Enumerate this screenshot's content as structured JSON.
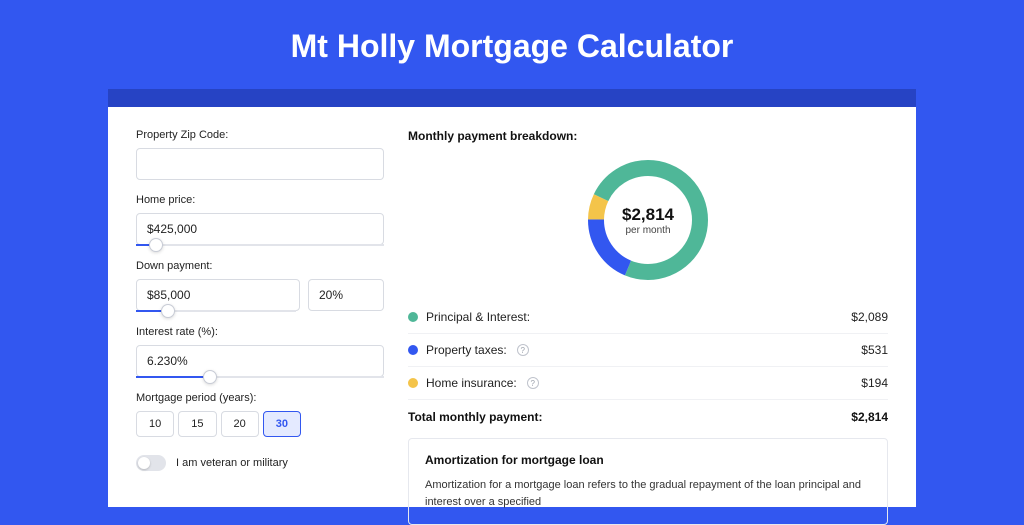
{
  "page": {
    "title": "Mt Holly Mortgage Calculator",
    "colors": {
      "page_bg": "#3257f0",
      "strip_bg": "#2643c4",
      "card_bg": "#ffffff",
      "accent": "#3257f0"
    }
  },
  "form": {
    "zip": {
      "label": "Property Zip Code:",
      "value": ""
    },
    "home_price": {
      "label": "Home price:",
      "value": "$425,000",
      "slider_pct": 8
    },
    "down_payment": {
      "label": "Down payment:",
      "amount": "$85,000",
      "percent": "20%",
      "slider_pct": 20
    },
    "interest_rate": {
      "label": "Interest rate (%):",
      "value": "6.230%",
      "slider_pct": 30
    },
    "period": {
      "label": "Mortgage period (years):",
      "options": [
        "10",
        "15",
        "20",
        "30"
      ],
      "selected": "30"
    },
    "veteran": {
      "label": "I am veteran or military",
      "checked": false
    }
  },
  "breakdown": {
    "title": "Monthly payment breakdown:",
    "center_amount": "$2,814",
    "center_sub": "per month",
    "donut": {
      "segments": [
        {
          "key": "principal_interest",
          "value": 2089,
          "color": "#4fb798"
        },
        {
          "key": "property_taxes",
          "value": 531,
          "color": "#3257f0"
        },
        {
          "key": "home_insurance",
          "value": 194,
          "color": "#f4c44a"
        }
      ],
      "total": 2814,
      "stroke_width": 16
    },
    "rows": [
      {
        "label": "Principal & Interest:",
        "value": "$2,089",
        "color": "#4fb798",
        "info": false
      },
      {
        "label": "Property taxes:",
        "value": "$531",
        "color": "#3257f0",
        "info": true
      },
      {
        "label": "Home insurance:",
        "value": "$194",
        "color": "#f4c44a",
        "info": true
      }
    ],
    "total_label": "Total monthly payment:",
    "total_value": "$2,814"
  },
  "amortization": {
    "title": "Amortization for mortgage loan",
    "text": "Amortization for a mortgage loan refers to the gradual repayment of the loan principal and interest over a specified"
  }
}
